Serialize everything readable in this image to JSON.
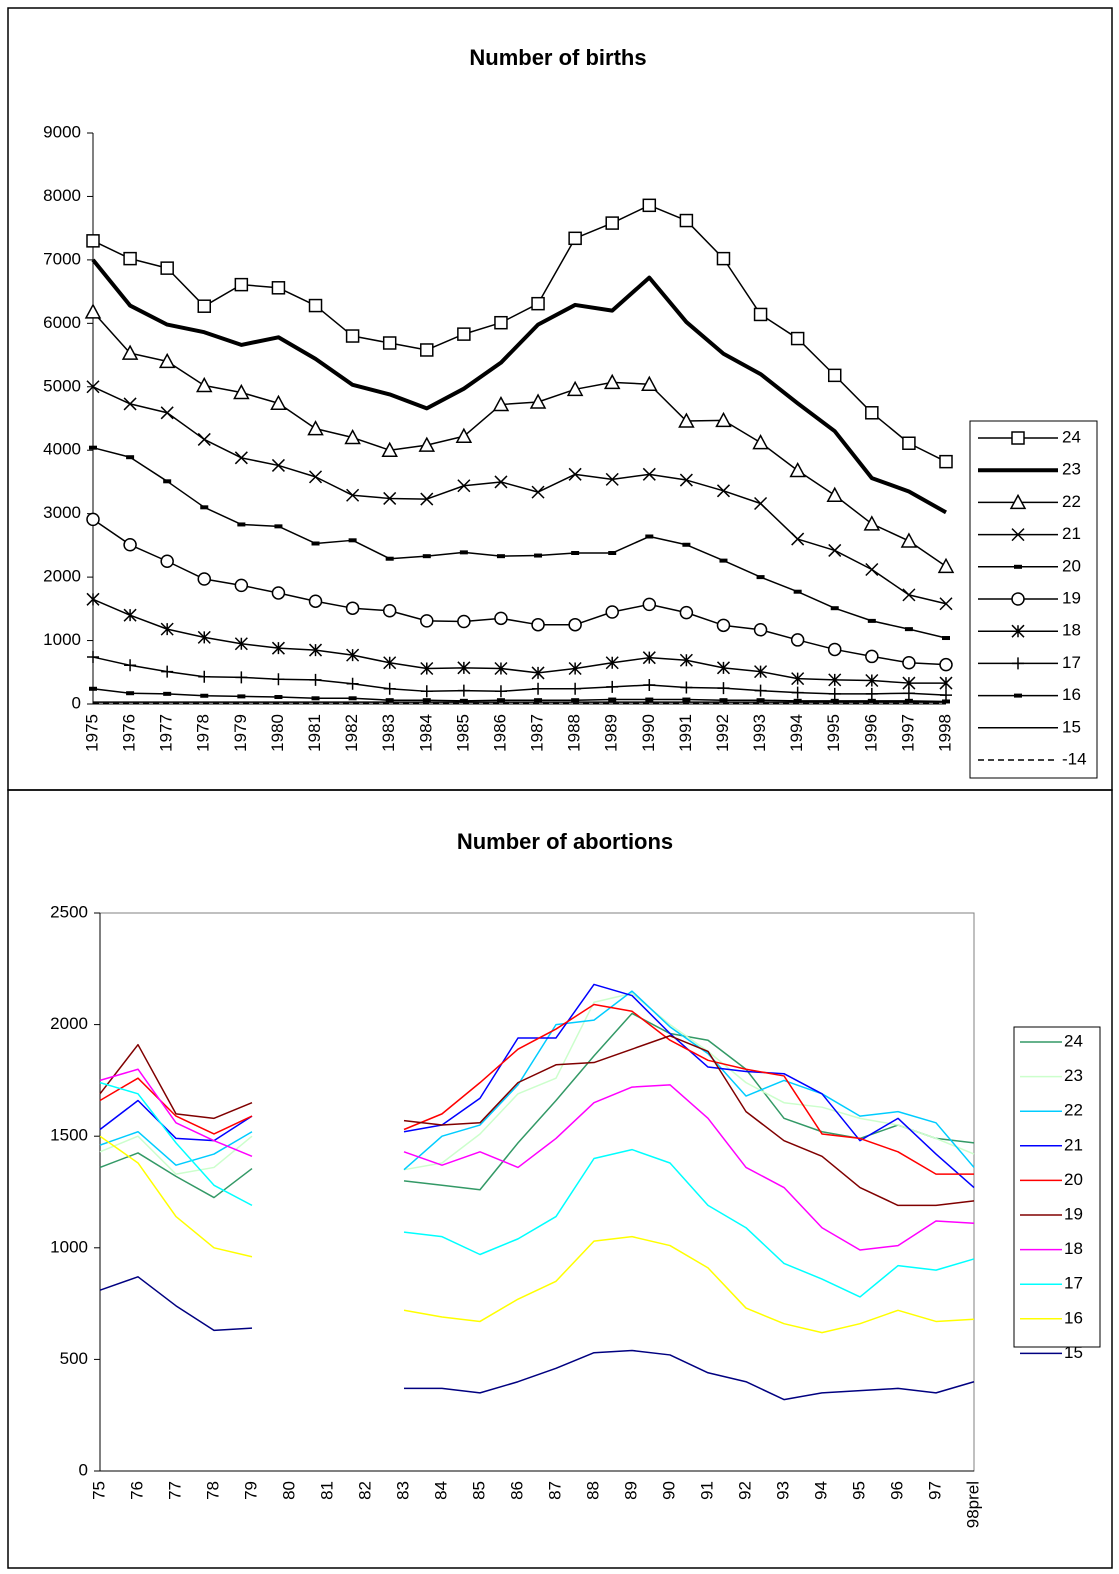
{
  "chart_data": [
    {
      "type": "line",
      "title": "Number of births",
      "categories": [
        "1975",
        "1976",
        "1977",
        "1978",
        "1979",
        "1980",
        "1981",
        "1982",
        "1983",
        "1984",
        "1985",
        "1986",
        "1987",
        "1988",
        "1989",
        "1990",
        "1991",
        "1992",
        "1993",
        "1994",
        "1995",
        "1996",
        "1997",
        "1998"
      ],
      "ylim": [
        0,
        9000
      ],
      "yticks": [
        0,
        1000,
        2000,
        3000,
        4000,
        5000,
        6000,
        7000,
        8000,
        9000
      ],
      "grid": false,
      "legend": "right",
      "series": [
        {
          "name": "24",
          "color": "#000000",
          "marker": "square",
          "line_style": "solid",
          "values": [
            7300,
            7020,
            6870,
            6270,
            6610,
            6560,
            6280,
            5800,
            5690,
            5580,
            5830,
            6010,
            6310,
            7340,
            7580,
            7860,
            7620,
            7020,
            6140,
            5760,
            5180,
            4590,
            4110,
            3820
          ]
        },
        {
          "name": "23",
          "color": "#000000",
          "marker": "none",
          "line_style": "thick",
          "values": [
            7000,
            6280,
            5980,
            5860,
            5660,
            5780,
            5440,
            5030,
            4880,
            4660,
            4970,
            5380,
            5980,
            6290,
            6200,
            6720,
            6020,
            5520,
            5200,
            4740,
            4300,
            3560,
            3350,
            3020
          ]
        },
        {
          "name": "22",
          "color": "#000000",
          "marker": "triangle",
          "line_style": "solid",
          "values": [
            6180,
            5530,
            5400,
            5020,
            4910,
            4740,
            4340,
            4200,
            4000,
            4080,
            4220,
            4720,
            4760,
            4960,
            5070,
            5040,
            4460,
            4470,
            4120,
            3680,
            3290,
            2840,
            2570,
            2170
          ]
        },
        {
          "name": "21",
          "color": "#000000",
          "marker": "x",
          "line_style": "solid",
          "values": [
            5000,
            4730,
            4590,
            4170,
            3880,
            3760,
            3580,
            3290,
            3240,
            3230,
            3440,
            3500,
            3340,
            3620,
            3540,
            3620,
            3530,
            3360,
            3160,
            2600,
            2420,
            2120,
            1720,
            1580
          ]
        },
        {
          "name": "20",
          "color": "#000000",
          "marker": "dash",
          "line_style": "solid",
          "values": [
            4040,
            3890,
            3510,
            3100,
            2830,
            2800,
            2530,
            2580,
            2290,
            2330,
            2390,
            2330,
            2340,
            2380,
            2380,
            2640,
            2510,
            2260,
            2000,
            1770,
            1510,
            1310,
            1180,
            1040
          ]
        },
        {
          "name": "19",
          "color": "#000000",
          "marker": "circle",
          "line_style": "solid",
          "values": [
            2910,
            2510,
            2250,
            1970,
            1870,
            1750,
            1620,
            1510,
            1470,
            1310,
            1300,
            1350,
            1250,
            1250,
            1450,
            1570,
            1440,
            1240,
            1170,
            1010,
            860,
            750,
            650,
            620
          ]
        },
        {
          "name": "18",
          "color": "#000000",
          "marker": "star",
          "line_style": "solid",
          "values": [
            1650,
            1400,
            1180,
            1050,
            950,
            880,
            850,
            770,
            650,
            560,
            570,
            560,
            490,
            560,
            650,
            730,
            690,
            570,
            510,
            400,
            380,
            370,
            330,
            330
          ]
        },
        {
          "name": "17",
          "color": "#000000",
          "marker": "plus",
          "line_style": "solid",
          "values": [
            740,
            610,
            510,
            430,
            420,
            390,
            380,
            320,
            240,
            200,
            210,
            200,
            240,
            240,
            270,
            300,
            260,
            250,
            210,
            180,
            160,
            160,
            170,
            140
          ]
        },
        {
          "name": "16",
          "color": "#000000",
          "marker": "dash",
          "line_style": "solid",
          "values": [
            240,
            170,
            160,
            130,
            120,
            110,
            90,
            90,
            60,
            60,
            50,
            60,
            60,
            60,
            70,
            70,
            70,
            60,
            60,
            50,
            50,
            50,
            50,
            40
          ]
        },
        {
          "name": "15",
          "color": "#000000",
          "marker": "none",
          "line_style": "solid",
          "values": [
            30,
            30,
            30,
            30,
            30,
            30,
            30,
            30,
            30,
            30,
            30,
            30,
            30,
            30,
            30,
            30,
            30,
            30,
            30,
            30,
            30,
            30,
            30,
            30
          ]
        },
        {
          "name": "-14",
          "color": "#000000",
          "marker": "none",
          "line_style": "dashed",
          "values": [
            10,
            10,
            10,
            10,
            10,
            10,
            10,
            10,
            10,
            10,
            10,
            10,
            10,
            10,
            10,
            10,
            10,
            10,
            10,
            10,
            10,
            10,
            10,
            10
          ]
        }
      ]
    },
    {
      "type": "line",
      "title": "Number of abortions",
      "categories": [
        "75",
        "76",
        "77",
        "78",
        "79",
        "80",
        "81",
        "82",
        "83",
        "84",
        "85",
        "86",
        "87",
        "88",
        "89",
        "90",
        "91",
        "92",
        "93",
        "94",
        "95",
        "96",
        "97",
        "98prel"
      ],
      "ylim": [
        0,
        2500
      ],
      "yticks": [
        0,
        500,
        1000,
        1500,
        2000,
        2500
      ],
      "grid": false,
      "legend": "right",
      "series": [
        {
          "name": "24",
          "color": "#339966",
          "values": [
            1360,
            1425,
            1320,
            1225,
            1355,
            null,
            null,
            null,
            1300,
            1280,
            1260,
            1470,
            1660,
            1860,
            2050,
            1960,
            1930,
            1800,
            1580,
            1520,
            1490,
            1550,
            1490,
            1470
          ]
        },
        {
          "name": "23",
          "color": "#ccffcc",
          "values": [
            1430,
            1500,
            1330,
            1360,
            1500,
            null,
            null,
            null,
            1350,
            1380,
            1510,
            1690,
            1760,
            2100,
            2140,
            2000,
            1880,
            1740,
            1650,
            1630,
            1580,
            1550,
            1490,
            1420
          ]
        },
        {
          "name": "22",
          "color": "#00ccff",
          "values": [
            1460,
            1520,
            1370,
            1420,
            1520,
            null,
            null,
            null,
            1350,
            1500,
            1550,
            1730,
            2000,
            2020,
            2150,
            1990,
            1870,
            1680,
            1750,
            1690,
            1590,
            1610,
            1560,
            1360
          ]
        },
        {
          "name": "21",
          "color": "#0000ff",
          "values": [
            1530,
            1660,
            1490,
            1480,
            1590,
            null,
            null,
            null,
            1520,
            1550,
            1670,
            1940,
            1940,
            2180,
            2130,
            1960,
            1810,
            1790,
            1780,
            1690,
            1480,
            1580,
            1420,
            1270
          ]
        },
        {
          "name": "20",
          "color": "#ff0000",
          "values": [
            1660,
            1760,
            1590,
            1510,
            1590,
            null,
            null,
            null,
            1530,
            1600,
            1740,
            1890,
            1980,
            2090,
            2060,
            1930,
            1840,
            1800,
            1770,
            1510,
            1490,
            1430,
            1330,
            1330
          ]
        },
        {
          "name": "19",
          "color": "#800000",
          "values": [
            1690,
            1910,
            1600,
            1580,
            1650,
            null,
            null,
            null,
            1570,
            1550,
            1560,
            1740,
            1820,
            1830,
            1890,
            1950,
            1880,
            1610,
            1480,
            1410,
            1270,
            1190,
            1190,
            1210
          ]
        },
        {
          "name": "18",
          "color": "#ff00ff",
          "values": [
            1750,
            1800,
            1560,
            1480,
            1410,
            null,
            null,
            null,
            1430,
            1370,
            1430,
            1360,
            1490,
            1650,
            1720,
            1730,
            1580,
            1360,
            1270,
            1090,
            990,
            1010,
            1120,
            1110
          ]
        },
        {
          "name": "17",
          "color": "#00ffff",
          "values": [
            1740,
            1690,
            1470,
            1280,
            1190,
            null,
            null,
            null,
            1070,
            1050,
            970,
            1040,
            1140,
            1400,
            1440,
            1380,
            1190,
            1090,
            930,
            860,
            780,
            920,
            900,
            950
          ]
        },
        {
          "name": "16",
          "color": "#ffff00",
          "values": [
            1500,
            1380,
            1140,
            1000,
            960,
            null,
            null,
            null,
            720,
            690,
            670,
            770,
            850,
            1030,
            1050,
            1010,
            910,
            730,
            660,
            620,
            660,
            720,
            670,
            680
          ]
        },
        {
          "name": "15",
          "color": "#000080",
          "values": [
            810,
            870,
            740,
            630,
            640,
            null,
            null,
            null,
            370,
            370,
            350,
            400,
            460,
            530,
            540,
            520,
            440,
            400,
            320,
            350,
            360,
            370,
            350,
            400
          ]
        }
      ]
    }
  ]
}
